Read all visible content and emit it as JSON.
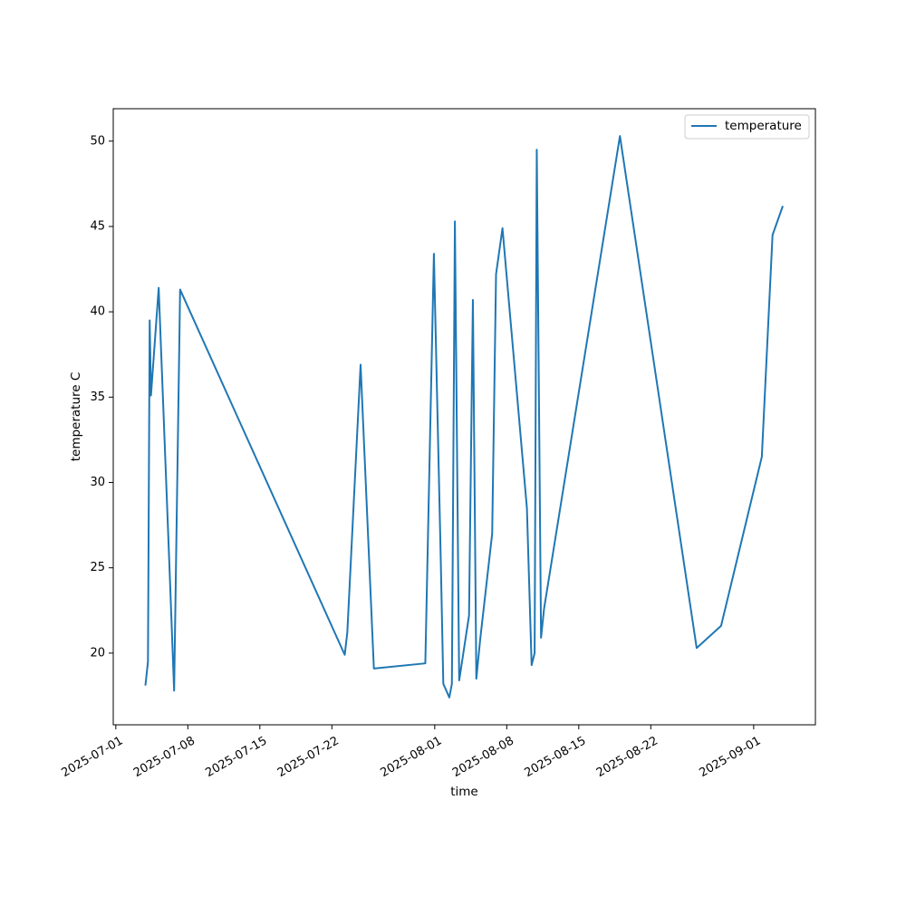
{
  "chart_data": {
    "type": "line",
    "title": "",
    "xlabel": "time",
    "ylabel": "temperature C",
    "x_scale": "date",
    "xlim": [
      "2025-06-30T18:00",
      "2025-09-07T00:00"
    ],
    "ylim": [
      15.8,
      51.9
    ],
    "x_ticks": [
      "2025-07-01",
      "2025-07-08",
      "2025-07-15",
      "2025-07-22",
      "2025-08-01",
      "2025-08-08",
      "2025-08-15",
      "2025-08-22",
      "2025-09-01"
    ],
    "y_ticks": [
      20,
      25,
      30,
      35,
      40,
      45,
      50
    ],
    "grid": false,
    "legend": {
      "position": "top-right",
      "entries": [
        "temperature"
      ]
    },
    "series": [
      {
        "name": "temperature",
        "color": "#1f77b4",
        "points": [
          {
            "x": "2025-07-03T21:00",
            "y": 18.1
          },
          {
            "x": "2025-07-04T03:00",
            "y": 19.5
          },
          {
            "x": "2025-07-04T07:00",
            "y": 39.5
          },
          {
            "x": "2025-07-04T10:00",
            "y": 35.1
          },
          {
            "x": "2025-07-05T04:00",
            "y": 41.4
          },
          {
            "x": "2025-07-06T06:00",
            "y": 24.5
          },
          {
            "x": "2025-07-06T16:00",
            "y": 17.8
          },
          {
            "x": "2025-07-07T06:00",
            "y": 41.3
          },
          {
            "x": "2025-07-23T06:00",
            "y": 19.9
          },
          {
            "x": "2025-07-23T12:00",
            "y": 21.2
          },
          {
            "x": "2025-07-24T19:00",
            "y": 36.9
          },
          {
            "x": "2025-07-26T02:00",
            "y": 19.1
          },
          {
            "x": "2025-07-31T02:00",
            "y": 19.4
          },
          {
            "x": "2025-07-31T22:00",
            "y": 43.4
          },
          {
            "x": "2025-08-01T14:00",
            "y": 25.5
          },
          {
            "x": "2025-08-01T20:00",
            "y": 18.2
          },
          {
            "x": "2025-08-02T10:00",
            "y": 17.4
          },
          {
            "x": "2025-08-02T16:00",
            "y": 18.2
          },
          {
            "x": "2025-08-02T23:00",
            "y": 45.3
          },
          {
            "x": "2025-08-03T09:00",
            "y": 18.4
          },
          {
            "x": "2025-08-04T08:00",
            "y": 22.2
          },
          {
            "x": "2025-08-04T17:00",
            "y": 40.7
          },
          {
            "x": "2025-08-05T01:00",
            "y": 18.5
          },
          {
            "x": "2025-08-05T10:00",
            "y": 20.8
          },
          {
            "x": "2025-08-06T14:00",
            "y": 27.0
          },
          {
            "x": "2025-08-06T23:00",
            "y": 42.2
          },
          {
            "x": "2025-08-07T14:00",
            "y": 44.9
          },
          {
            "x": "2025-08-09T23:00",
            "y": 28.5
          },
          {
            "x": "2025-08-10T10:00",
            "y": 19.3
          },
          {
            "x": "2025-08-10T17:00",
            "y": 20.0
          },
          {
            "x": "2025-08-10T22:00",
            "y": 49.5
          },
          {
            "x": "2025-08-11T08:00",
            "y": 20.9
          },
          {
            "x": "2025-08-11T15:00",
            "y": 22.6
          },
          {
            "x": "2025-08-19T00:00",
            "y": 50.3
          },
          {
            "x": "2025-08-26T11:00",
            "y": 20.3
          },
          {
            "x": "2025-08-28T20:00",
            "y": 21.6
          },
          {
            "x": "2025-09-01T19:00",
            "y": 31.5
          },
          {
            "x": "2025-09-02T20:00",
            "y": 44.5
          },
          {
            "x": "2025-09-03T20:00",
            "y": 46.2
          }
        ]
      }
    ]
  }
}
